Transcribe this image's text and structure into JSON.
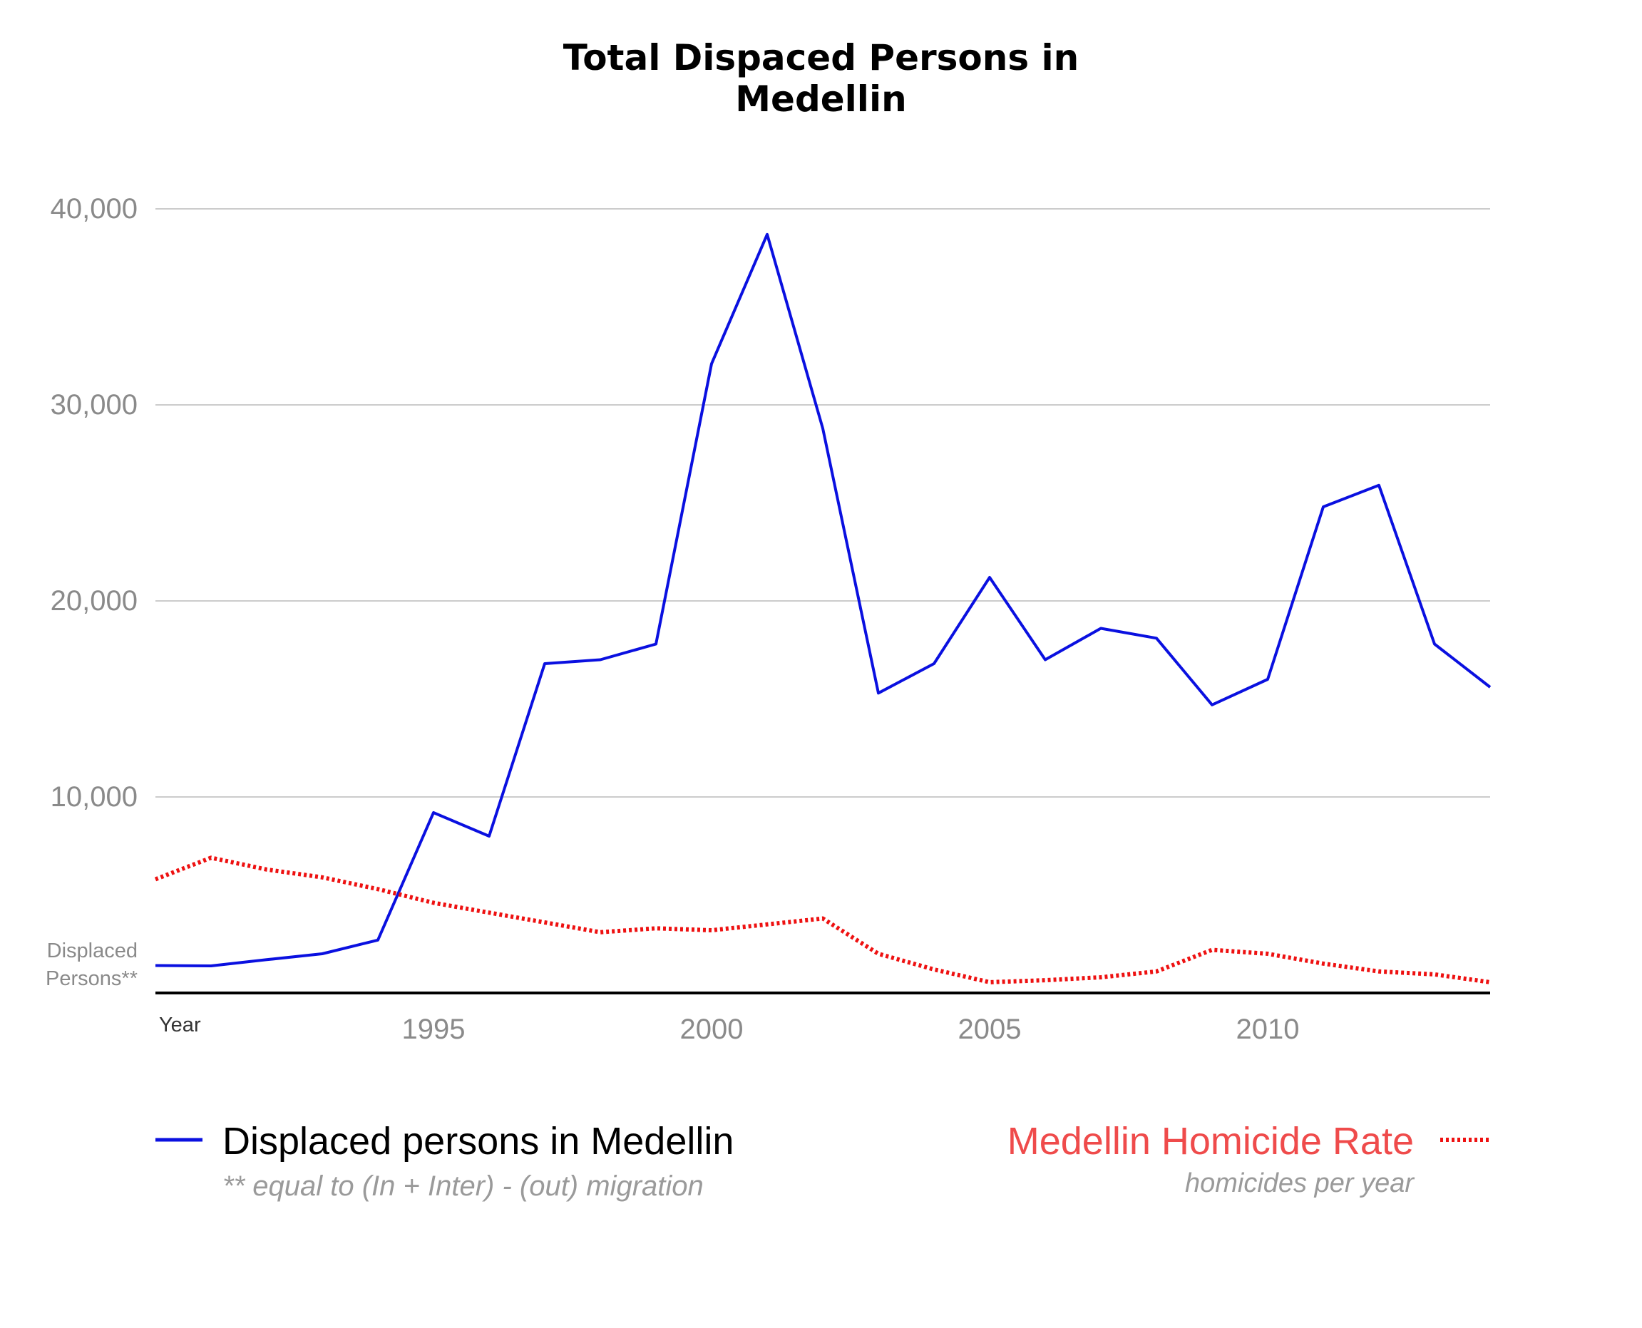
{
  "chart_data": {
    "type": "line",
    "title_lines": [
      "Total Dispaced Persons in",
      "Medellin"
    ],
    "ylabel_lines": [
      "Displaced",
      "Persons**"
    ],
    "xlabel": "Year",
    "ylim": [
      0,
      40000
    ],
    "xlim": [
      1990,
      2014
    ],
    "yticks": [
      {
        "value": 10000,
        "label": "10,000"
      },
      {
        "value": 20000,
        "label": "20,000"
      },
      {
        "value": 30000,
        "label": "30,000"
      },
      {
        "value": 40000,
        "label": "40,000"
      }
    ],
    "xticks": [
      {
        "value": 1995,
        "label": "1995"
      },
      {
        "value": 2000,
        "label": "2000"
      },
      {
        "value": 2005,
        "label": "2005"
      },
      {
        "value": 2010,
        "label": "2010"
      }
    ],
    "grid": true,
    "x": [
      1990,
      1991,
      1992,
      1993,
      1994,
      1995,
      1996,
      1997,
      1998,
      1999,
      2000,
      2001,
      2002,
      2003,
      2004,
      2005,
      2006,
      2007,
      2008,
      2009,
      2010,
      2011,
      2012,
      2013,
      2014
    ],
    "series": [
      {
        "name": "Displaced persons in Medellin",
        "note": "** equal to (In + Inter) - (out) migration",
        "color": "#0a10e0",
        "style": "solid",
        "values": [
          1400,
          1380,
          1700,
          2000,
          2700,
          9200,
          8000,
          16800,
          17000,
          17800,
          32100,
          38700,
          28800,
          15300,
          16800,
          21200,
          17000,
          18600,
          18100,
          14700,
          16000,
          24800,
          25900,
          17800,
          15600
        ]
      },
      {
        "name": "Medellin Homicide Rate",
        "note": "homicides per year",
        "color": "#ee1111",
        "style": "dotted",
        "values": [
          5800,
          6900,
          6300,
          5900,
          5300,
          4600,
          4100,
          3600,
          3100,
          3300,
          3200,
          3500,
          3800,
          2000,
          1200,
          550,
          650,
          800,
          1100,
          2200,
          2000,
          1500,
          1100,
          950,
          550
        ]
      }
    ],
    "legend_placement": "bottom"
  }
}
